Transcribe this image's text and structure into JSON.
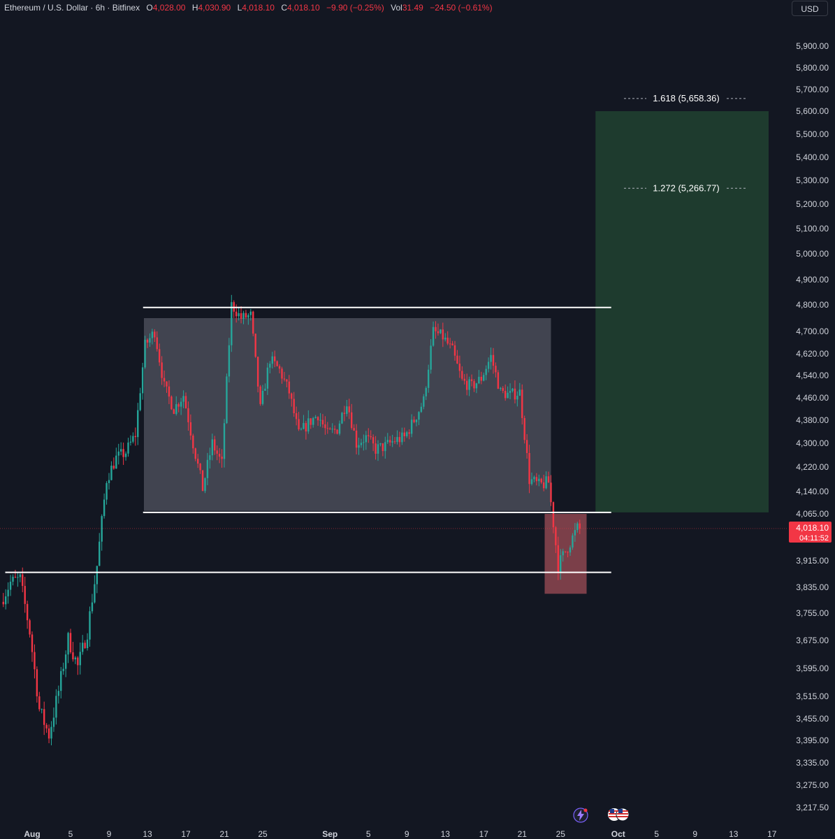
{
  "legend": {
    "symbol": "Ethereum / U.S. Dollar · 6h · Bitfinex",
    "open_label": "O",
    "open": "4,028.00",
    "high_label": "H",
    "high": "4,030.90",
    "low_label": "L",
    "low": "4,018.10",
    "close_label": "C",
    "close": "4,018.10",
    "change": "−9.90 (−0.25%)",
    "vol_label": "Vol",
    "vol": "31.49",
    "vol_change": "−24.50 (−0.61%)"
  },
  "currency_button": "USD",
  "last_price": {
    "value": "4,018.10",
    "countdown": "04:11:52"
  },
  "colors": {
    "bg": "#131722",
    "up": "#26a69a",
    "down": "#f23645",
    "range_box": "#4a4c58",
    "target_box": "#1f3d2f",
    "stop_box": "#8e4650"
  },
  "icons": [
    "bolt-icon",
    "us-flag-icon"
  ],
  "chart_data": {
    "type": "candlestick",
    "symbol": "ETH/USD",
    "interval": "6h",
    "y_ticks": [
      {
        "value": 5900,
        "label": "5,900.00"
      },
      {
        "value": 5800,
        "label": "5,800.00"
      },
      {
        "value": 5700,
        "label": "5,700.00"
      },
      {
        "value": 5600,
        "label": "5,600.00"
      },
      {
        "value": 5500,
        "label": "5,500.00"
      },
      {
        "value": 5400,
        "label": "5,400.00"
      },
      {
        "value": 5300,
        "label": "5,300.00"
      },
      {
        "value": 5200,
        "label": "5,200.00"
      },
      {
        "value": 5100,
        "label": "5,100.00"
      },
      {
        "value": 5000,
        "label": "5,000.00"
      },
      {
        "value": 4900,
        "label": "4,900.00"
      },
      {
        "value": 4800,
        "label": "4,800.00"
      },
      {
        "value": 4700,
        "label": "4,700.00"
      },
      {
        "value": 4620,
        "label": "4,620.00"
      },
      {
        "value": 4540,
        "label": "4,540.00"
      },
      {
        "value": 4460,
        "label": "4,460.00"
      },
      {
        "value": 4380,
        "label": "4,380.00"
      },
      {
        "value": 4300,
        "label": "4,300.00"
      },
      {
        "value": 4220,
        "label": "4,220.00"
      },
      {
        "value": 4140,
        "label": "4,140.00"
      },
      {
        "value": 4065,
        "label": "4,065.00"
      },
      {
        "value": 3915,
        "label": "3,915.00"
      },
      {
        "value": 3835,
        "label": "3,835.00"
      },
      {
        "value": 3755,
        "label": "3,755.00"
      },
      {
        "value": 3675,
        "label": "3,675.00"
      },
      {
        "value": 3595,
        "label": "3,595.00"
      },
      {
        "value": 3515,
        "label": "3,515.00"
      },
      {
        "value": 3455,
        "label": "3,455.00"
      },
      {
        "value": 3395,
        "label": "3,395.00"
      },
      {
        "value": 3335,
        "label": "3,335.00"
      },
      {
        "value": 3275,
        "label": "3,275.00"
      },
      {
        "value": 3217.5,
        "label": "3,217.50"
      }
    ],
    "x_ticks": [
      {
        "date": "2025-08-01",
        "label": "Aug"
      },
      {
        "date": "2025-08-05",
        "label": "5"
      },
      {
        "date": "2025-08-09",
        "label": "9"
      },
      {
        "date": "2025-08-13",
        "label": "13"
      },
      {
        "date": "2025-08-17",
        "label": "17"
      },
      {
        "date": "2025-08-21",
        "label": "21"
      },
      {
        "date": "2025-08-25",
        "label": "25"
      },
      {
        "date": "2025-09-01",
        "label": "Sep"
      },
      {
        "date": "2025-09-05",
        "label": "5"
      },
      {
        "date": "2025-09-09",
        "label": "9"
      },
      {
        "date": "2025-09-13",
        "label": "13"
      },
      {
        "date": "2025-09-17",
        "label": "17"
      },
      {
        "date": "2025-09-21",
        "label": "21"
      },
      {
        "date": "2025-09-25",
        "label": "25"
      },
      {
        "date": "2025-10-01",
        "label": "Oct"
      },
      {
        "date": "2025-10-05",
        "label": "5"
      },
      {
        "date": "2025-10-09",
        "label": "9"
      },
      {
        "date": "2025-10-13",
        "label": "13"
      },
      {
        "date": "2025-10-17",
        "label": "17"
      }
    ],
    "price_path": [
      [
        "2025-07-29",
        3790
      ],
      [
        "2025-07-30",
        3850
      ],
      [
        "2025-07-31",
        3860
      ],
      [
        "2025-08-01",
        3700
      ],
      [
        "2025-08-02",
        3480
      ],
      [
        "2025-08-03",
        3410
      ],
      [
        "2025-08-04",
        3530
      ],
      [
        "2025-08-05",
        3680
      ],
      [
        "2025-08-06",
        3600
      ],
      [
        "2025-08-07",
        3700
      ],
      [
        "2025-08-08",
        3900
      ],
      [
        "2025-08-09",
        4180
      ],
      [
        "2025-08-10",
        4250
      ],
      [
        "2025-08-11",
        4270
      ],
      [
        "2025-08-12",
        4330
      ],
      [
        "2025-08-13",
        4650
      ],
      [
        "2025-08-14",
        4700
      ],
      [
        "2025-08-15",
        4500
      ],
      [
        "2025-08-16",
        4420
      ],
      [
        "2025-08-17",
        4470
      ],
      [
        "2025-08-18",
        4300
      ],
      [
        "2025-08-19",
        4150
      ],
      [
        "2025-08-20",
        4300
      ],
      [
        "2025-08-21",
        4230
      ],
      [
        "2025-08-22",
        4800
      ],
      [
        "2025-08-23",
        4750
      ],
      [
        "2025-08-24",
        4760
      ],
      [
        "2025-08-25",
        4420
      ],
      [
        "2025-08-26",
        4600
      ],
      [
        "2025-08-27",
        4560
      ],
      [
        "2025-08-28",
        4480
      ],
      [
        "2025-08-29",
        4330
      ],
      [
        "2025-08-30",
        4370
      ],
      [
        "2025-08-31",
        4400
      ],
      [
        "2025-09-01",
        4330
      ],
      [
        "2025-09-02",
        4350
      ],
      [
        "2025-09-03",
        4450
      ],
      [
        "2025-09-04",
        4300
      ],
      [
        "2025-09-05",
        4320
      ],
      [
        "2025-09-06",
        4280
      ],
      [
        "2025-09-07",
        4290
      ],
      [
        "2025-09-08",
        4310
      ],
      [
        "2025-09-09",
        4320
      ],
      [
        "2025-09-10",
        4380
      ],
      [
        "2025-09-11",
        4450
      ],
      [
        "2025-09-12",
        4700
      ],
      [
        "2025-09-13",
        4680
      ],
      [
        "2025-09-14",
        4630
      ],
      [
        "2025-09-15",
        4520
      ],
      [
        "2025-09-16",
        4500
      ],
      [
        "2025-09-17",
        4530
      ],
      [
        "2025-09-18",
        4610
      ],
      [
        "2025-09-19",
        4480
      ],
      [
        "2025-09-20",
        4470
      ],
      [
        "2025-09-21",
        4480
      ],
      [
        "2025-09-22",
        4180
      ],
      [
        "2025-09-23",
        4160
      ],
      [
        "2025-09-24",
        4170
      ],
      [
        "2025-09-25",
        3900
      ],
      [
        "2025-09-26",
        3960
      ],
      [
        "2025-09-27",
        4018.1
      ]
    ],
    "trendlines": [
      {
        "from": "2025-08-14",
        "to": "2025-10-01",
        "y": 4790
      },
      {
        "from": "2025-08-14",
        "to": "2025-10-01",
        "y": 4070
      },
      {
        "from": "2025-07-30",
        "to": "2025-10-01",
        "y": 3880
      }
    ],
    "range_box": {
      "from": "2025-08-13",
      "to": "2025-09-24",
      "y1": 4075,
      "y2": 4750
    },
    "target_box": {
      "from": "2025-09-29",
      "to": "2025-10-16",
      "y1": 4070,
      "y2": 5600
    },
    "stop_box": {
      "from": "2025-09-24",
      "to": "2025-09-28",
      "y1": 3815,
      "y2": 4065
    },
    "fib_levels": [
      {
        "label": "1.618 (5,658.36)",
        "value": 5658.36
      },
      {
        "label": "1.272 (5,266.77)",
        "value": 5266.77
      }
    ],
    "last_price": 4018.1
  }
}
